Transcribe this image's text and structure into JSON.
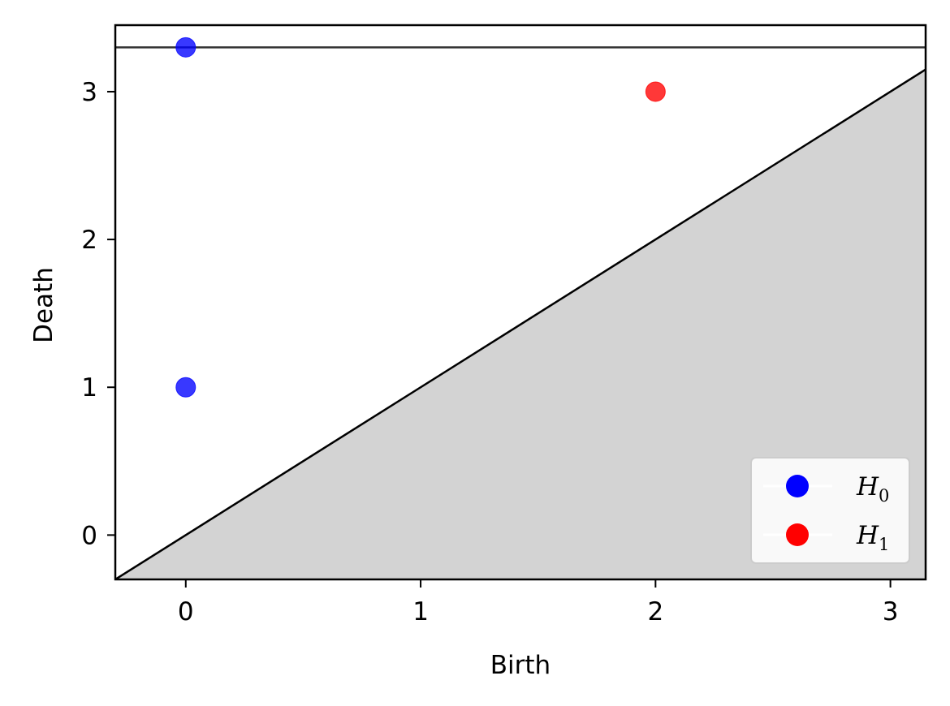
{
  "chart_data": {
    "type": "scatter",
    "title": "",
    "xlabel": "Birth",
    "ylabel": "Death",
    "xlim": [
      -0.3,
      3.15
    ],
    "ylim": [
      -0.3,
      3.45
    ],
    "xticks": [
      0,
      1,
      2,
      3
    ],
    "yticks": [
      0,
      1,
      2,
      3
    ],
    "xtick_labels": [
      "0",
      "1",
      "2",
      "3"
    ],
    "ytick_labels": [
      "0",
      "1",
      "2",
      "3"
    ],
    "grid": false,
    "legend_position": "bottom-right",
    "diagonal": true,
    "shaded_region": "below-diagonal",
    "infinity_line": 3.3,
    "colors": {
      "H0": "#0000ff",
      "H1": "#ff0000",
      "shade": "#d3d3d3",
      "infinity_line": "#333333"
    },
    "series": [
      {
        "name": "H0",
        "legend_base": "H",
        "legend_sub": "0",
        "color": "#0000ff",
        "points": [
          {
            "x": 0,
            "y": 3.3
          },
          {
            "x": 0,
            "y": 1
          }
        ]
      },
      {
        "name": "H1",
        "legend_base": "H",
        "legend_sub": "1",
        "color": "#ff0000",
        "points": [
          {
            "x": 2,
            "y": 3
          }
        ]
      }
    ]
  }
}
